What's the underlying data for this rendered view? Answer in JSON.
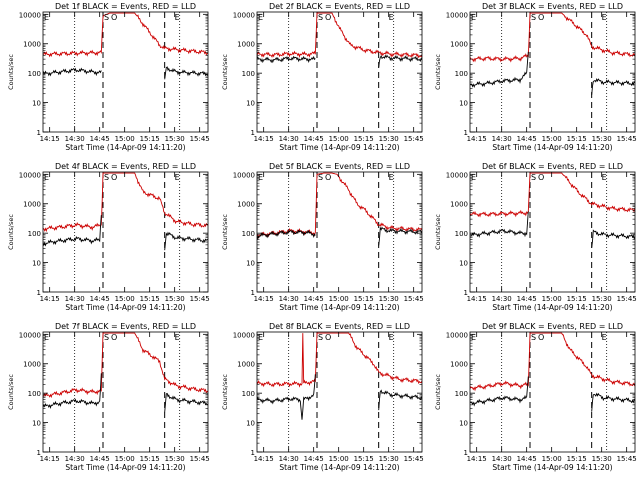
{
  "figure": {
    "panel_titles": [
      "Det 1f BLACK = Events, RED = LLD",
      "Det 2f BLACK = Events, RED = LLD",
      "Det 3f BLACK = Events, RED = LLD",
      "Det 4f BLACK = Events, RED = LLD",
      "Det 5f BLACK = Events, RED = LLD",
      "Det 6f BLACK = Events, RED = LLD",
      "Det 7f BLACK = Events, RED = LLD",
      "Det 8f BLACK = Events, RED = LLD",
      "Det 9f BLACK = Events, RED = LLD"
    ],
    "ylabel": "Counts/sec",
    "xlabel": "Start Time (14-Apr-09 14:11:20)",
    "x_ticks": [
      "14:15",
      "14:30",
      "14:45",
      "15:00",
      "15:15",
      "15:30",
      "15:45"
    ],
    "y_ticks": [
      "1",
      "10",
      "100",
      "1000",
      "10000"
    ],
    "markers": {
      "S": "S",
      "E": "E",
      "O": "O"
    }
  },
  "chart_data": {
    "type": "line",
    "scale_y": "log",
    "ylim": [
      1,
      12000
    ],
    "xlim_minutes_after_1411": [
      0,
      99
    ],
    "vertical_dashed_lines_min": [
      36,
      73
    ],
    "vertical_dotted_lines_min": [
      19,
      82
    ],
    "panels": [
      {
        "detector": "1f",
        "series": [
          {
            "color": "#cc0000",
            "pre": 480,
            "peak": 11000,
            "post": 500,
            "x": [
              0,
              20,
              35,
              36,
              40,
              45,
              55,
              70,
              73,
              99
            ],
            "y": [
              440,
              480,
              500,
              9000,
              11000,
              11000,
              11000,
              900,
              700,
              500
            ]
          },
          {
            "color": "#000000",
            "x": [
              0,
              10,
              20,
              30,
              35,
              36,
              37,
              72,
              73,
              74,
              80,
              99
            ],
            "y": [
              95,
              110,
              130,
              110,
              105,
              null,
              null,
              null,
              55,
              150,
              110,
              95
            ]
          }
        ]
      },
      {
        "detector": "2f",
        "series": [
          {
            "color": "#cc0000",
            "x": [
              0,
              10,
              20,
              30,
              35,
              36,
              40,
              45,
              50,
              56,
              65,
              73,
              80,
              99
            ],
            "y": [
              450,
              420,
              460,
              440,
              470,
              11000,
              11000,
              11000,
              3000,
              900,
              600,
              500,
              450,
              400
            ]
          },
          {
            "color": "#000000",
            "x": [
              0,
              10,
              20,
              30,
              35,
              36,
              37,
              72,
              73,
              74,
              80,
              99
            ],
            "y": [
              300,
              280,
              320,
              300,
              300,
              null,
              null,
              null,
              150,
              380,
              330,
              300
            ]
          }
        ]
      },
      {
        "detector": "3f",
        "series": [
          {
            "color": "#cc0000",
            "x": [
              0,
              10,
              20,
              30,
              35,
              36,
              40,
              55,
              70,
              73,
              85,
              99
            ],
            "y": [
              300,
              320,
              300,
              320,
              400,
              11000,
              11000,
              11000,
              2000,
              800,
              500,
              420
            ]
          },
          {
            "color": "#000000",
            "x": [
              0,
              10,
              20,
              30,
              34,
              35,
              36,
              37,
              72,
              73,
              74,
              80,
              99
            ],
            "y": [
              40,
              45,
              55,
              60,
              100,
              600,
              null,
              null,
              null,
              20,
              60,
              50,
              45
            ]
          }
        ]
      },
      {
        "detector": "4f",
        "series": [
          {
            "color": "#cc0000",
            "x": [
              0,
              10,
              20,
              30,
              35,
              36,
              40,
              55,
              60,
              70,
              73,
              80,
              90,
              99
            ],
            "y": [
              140,
              160,
              190,
              160,
              200,
              11000,
              11000,
              11000,
              2500,
              1500,
              500,
              250,
              200,
              180
            ]
          },
          {
            "color": "#000000",
            "x": [
              0,
              10,
              20,
              30,
              34,
              35,
              36,
              37,
              72,
              73,
              74,
              80,
              99
            ],
            "y": [
              45,
              55,
              65,
              55,
              60,
              500,
              null,
              null,
              null,
              30,
              100,
              70,
              55
            ]
          }
        ]
      },
      {
        "detector": "5f",
        "series": [
          {
            "color": "#cc0000",
            "x": [
              0,
              10,
              20,
              30,
              35,
              36,
              40,
              45,
              48,
              55,
              60,
              65,
              73,
              80,
              99
            ],
            "y": [
              85,
              100,
              120,
              110,
              100,
              10000,
              11000,
              11000,
              10000,
              3000,
              1000,
              600,
              200,
              150,
              130
            ]
          },
          {
            "color": "#000000",
            "x": [
              0,
              10,
              20,
              30,
              35,
              36,
              37,
              72,
              73,
              74,
              80,
              99
            ],
            "y": [
              80,
              95,
              110,
              105,
              90,
              null,
              null,
              null,
              40,
              140,
              120,
              110
            ]
          }
        ]
      },
      {
        "detector": "6f",
        "series": [
          {
            "color": "#cc0000",
            "x": [
              0,
              10,
              20,
              30,
              35,
              36,
              40,
              55,
              65,
              73,
              85,
              99
            ],
            "y": [
              450,
              440,
              460,
              480,
              500,
              11000,
              11000,
              11000,
              2500,
              1000,
              700,
              600
            ]
          },
          {
            "color": "#000000",
            "x": [
              0,
              10,
              20,
              30,
              34,
              35,
              36,
              37,
              72,
              73,
              74,
              80,
              99
            ],
            "y": [
              85,
              100,
              120,
              100,
              100,
              500,
              null,
              null,
              null,
              30,
              110,
              90,
              75
            ]
          }
        ]
      },
      {
        "detector": "7f",
        "series": [
          {
            "color": "#cc0000",
            "x": [
              0,
              10,
              20,
              30,
              35,
              36,
              40,
              55,
              60,
              70,
              73,
              80,
              90,
              99
            ],
            "y": [
              80,
              100,
              130,
              110,
              120,
              11000,
              11000,
              11000,
              3000,
              1200,
              300,
              180,
              140,
              120
            ]
          },
          {
            "color": "#000000",
            "x": [
              0,
              10,
              20,
              30,
              34,
              35,
              36,
              37,
              72,
              73,
              74,
              80,
              99
            ],
            "y": [
              35,
              45,
              55,
              45,
              50,
              400,
              null,
              null,
              null,
              20,
              90,
              60,
              45
            ]
          }
        ]
      },
      {
        "detector": "8f",
        "series": [
          {
            "color": "#cc0000",
            "x": [
              0,
              10,
              20,
              27,
              27.5,
              28,
              30,
              35,
              36,
              40,
              55,
              60,
              70,
              73,
              85,
              99
            ],
            "y": [
              220,
              200,
              210,
              210,
              11000,
              220,
              230,
              250,
              11000,
              11000,
              11000,
              3500,
              1000,
              500,
              300,
              250
            ]
          },
          {
            "color": "#000000",
            "x": [
              0,
              10,
              20,
              26,
              27,
              28,
              30,
              34,
              35,
              36,
              37,
              72,
              73,
              74,
              80,
              99
            ],
            "y": [
              60,
              55,
              65,
              60,
              12,
              60,
              70,
              80,
              400,
              null,
              null,
              null,
              25,
              120,
              90,
              70
            ]
          }
        ]
      },
      {
        "detector": "9f",
        "series": [
          {
            "color": "#cc0000",
            "x": [
              0,
              10,
              20,
              30,
              35,
              36,
              40,
              55,
              60,
              70,
              73,
              85,
              99
            ],
            "y": [
              150,
              170,
              220,
              180,
              200,
              11000,
              11000,
              11000,
              3000,
              800,
              400,
              250,
              200
            ]
          },
          {
            "color": "#000000",
            "x": [
              0,
              10,
              20,
              30,
              34,
              35,
              36,
              37,
              72,
              73,
              74,
              80,
              99
            ],
            "y": [
              45,
              55,
              70,
              60,
              70,
              400,
              null,
              null,
              null,
              25,
              100,
              70,
              55
            ]
          }
        ]
      }
    ]
  }
}
